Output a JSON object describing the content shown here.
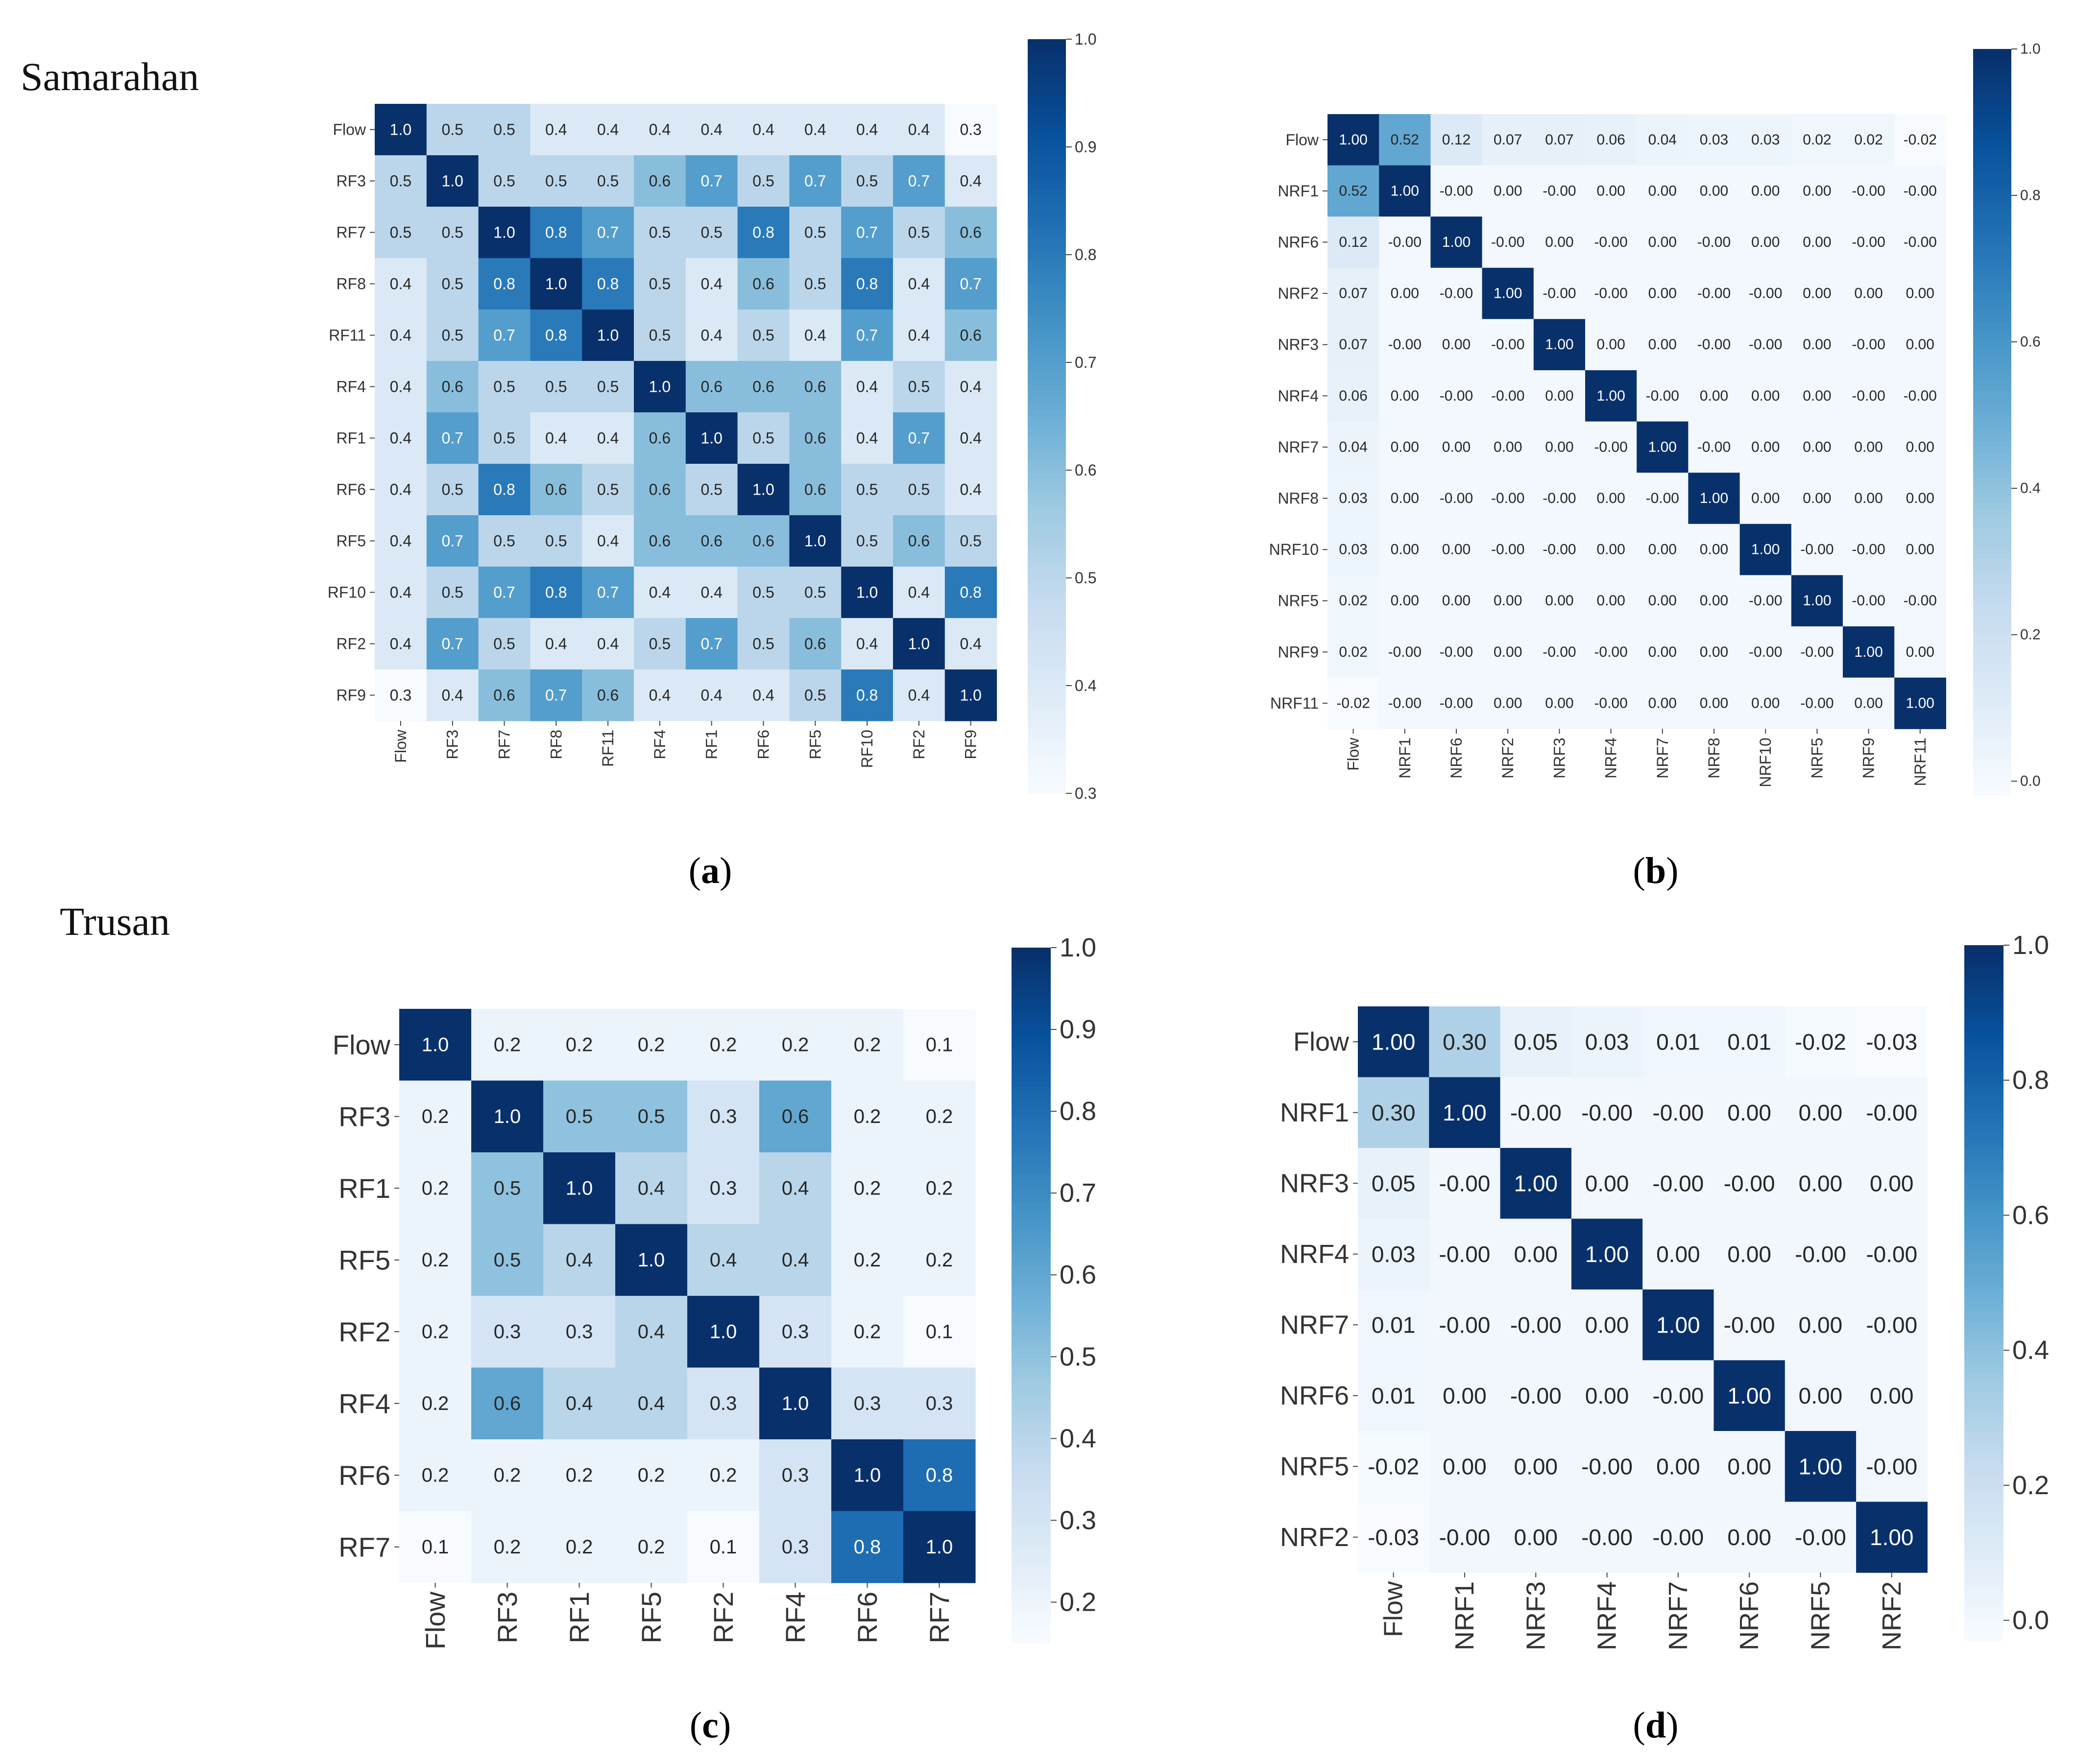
{
  "sections": [
    "Samarahan",
    "Trusan"
  ],
  "captions": [
    {
      "letter": "a"
    },
    {
      "letter": "b"
    },
    {
      "letter": "c"
    },
    {
      "letter": "d"
    }
  ],
  "colormap": {
    "name": "Blues",
    "stops": [
      "#f7fbff",
      "#deebf7",
      "#c6dbef",
      "#9ecae1",
      "#6baed6",
      "#4292c6",
      "#2171b5",
      "#08519c",
      "#08306b"
    ]
  },
  "chart_data": [
    {
      "id": "a",
      "type": "heatmap",
      "title": "",
      "section": "Samarahan",
      "labels": [
        "Flow",
        "RF3",
        "RF7",
        "RF8",
        "RF11",
        "RF4",
        "RF1",
        "RF6",
        "RF5",
        "RF10",
        "RF2",
        "RF9"
      ],
      "decimals": 1,
      "vmin": 0.3,
      "vmax": 1.0,
      "colorbar_ticks": [
        1.0,
        0.9,
        0.8,
        0.7,
        0.6,
        0.5,
        0.4,
        0.3
      ],
      "values": [
        [
          1.0,
          0.5,
          0.5,
          0.4,
          0.4,
          0.4,
          0.4,
          0.4,
          0.4,
          0.4,
          0.4,
          0.3
        ],
        [
          0.5,
          1.0,
          0.5,
          0.5,
          0.5,
          0.6,
          0.7,
          0.5,
          0.7,
          0.5,
          0.7,
          0.4
        ],
        [
          0.5,
          0.5,
          1.0,
          0.8,
          0.7,
          0.5,
          0.5,
          0.8,
          0.5,
          0.7,
          0.5,
          0.6
        ],
        [
          0.4,
          0.5,
          0.8,
          1.0,
          0.8,
          0.5,
          0.4,
          0.6,
          0.5,
          0.8,
          0.4,
          0.7
        ],
        [
          0.4,
          0.5,
          0.7,
          0.8,
          1.0,
          0.5,
          0.4,
          0.5,
          0.4,
          0.7,
          0.4,
          0.6
        ],
        [
          0.4,
          0.6,
          0.5,
          0.5,
          0.5,
          1.0,
          0.6,
          0.6,
          0.6,
          0.4,
          0.5,
          0.4
        ],
        [
          0.4,
          0.7,
          0.5,
          0.4,
          0.4,
          0.6,
          1.0,
          0.5,
          0.6,
          0.4,
          0.7,
          0.4
        ],
        [
          0.4,
          0.5,
          0.8,
          0.6,
          0.5,
          0.6,
          0.5,
          1.0,
          0.6,
          0.5,
          0.5,
          0.4
        ],
        [
          0.4,
          0.7,
          0.5,
          0.5,
          0.4,
          0.6,
          0.6,
          0.6,
          1.0,
          0.5,
          0.6,
          0.5
        ],
        [
          0.4,
          0.5,
          0.7,
          0.8,
          0.7,
          0.4,
          0.4,
          0.5,
          0.5,
          1.0,
          0.4,
          0.8
        ],
        [
          0.4,
          0.7,
          0.5,
          0.4,
          0.4,
          0.5,
          0.7,
          0.5,
          0.6,
          0.4,
          1.0,
          0.4
        ],
        [
          0.3,
          0.4,
          0.6,
          0.7,
          0.6,
          0.4,
          0.4,
          0.4,
          0.5,
          0.8,
          0.4,
          1.0
        ]
      ]
    },
    {
      "id": "b",
      "type": "heatmap",
      "title": "",
      "section": "Samarahan",
      "labels": [
        "Flow",
        "NRF1",
        "NRF6",
        "NRF2",
        "NRF3",
        "NRF4",
        "NRF7",
        "NRF8",
        "NRF10",
        "NRF5",
        "NRF9",
        "NRF11"
      ],
      "decimals": 2,
      "vmin": -0.02,
      "vmax": 1.0,
      "colorbar_ticks": [
        1.0,
        0.8,
        0.6,
        0.4,
        0.2,
        0.0
      ],
      "values": [
        [
          1.0,
          0.52,
          0.12,
          0.07,
          0.07,
          0.06,
          0.04,
          0.03,
          0.03,
          0.02,
          0.02,
          -0.02
        ],
        [
          0.52,
          1.0,
          -0.0,
          0.0,
          -0.0,
          0.0,
          0.0,
          0.0,
          0.0,
          0.0,
          -0.0,
          -0.0
        ],
        [
          0.12,
          -0.0,
          1.0,
          -0.0,
          0.0,
          -0.0,
          0.0,
          -0.0,
          0.0,
          0.0,
          -0.0,
          -0.0
        ],
        [
          0.07,
          0.0,
          -0.0,
          1.0,
          -0.0,
          -0.0,
          0.0,
          -0.0,
          -0.0,
          0.0,
          0.0,
          0.0
        ],
        [
          0.07,
          -0.0,
          0.0,
          -0.0,
          1.0,
          0.0,
          0.0,
          -0.0,
          -0.0,
          0.0,
          -0.0,
          0.0
        ],
        [
          0.06,
          0.0,
          -0.0,
          -0.0,
          0.0,
          1.0,
          -0.0,
          0.0,
          0.0,
          0.0,
          -0.0,
          -0.0
        ],
        [
          0.04,
          0.0,
          0.0,
          0.0,
          0.0,
          -0.0,
          1.0,
          -0.0,
          0.0,
          0.0,
          0.0,
          0.0
        ],
        [
          0.03,
          0.0,
          -0.0,
          -0.0,
          -0.0,
          0.0,
          -0.0,
          1.0,
          0.0,
          0.0,
          0.0,
          0.0
        ],
        [
          0.03,
          0.0,
          0.0,
          -0.0,
          -0.0,
          0.0,
          0.0,
          0.0,
          1.0,
          -0.0,
          -0.0,
          0.0
        ],
        [
          0.02,
          0.0,
          0.0,
          0.0,
          0.0,
          0.0,
          0.0,
          0.0,
          -0.0,
          1.0,
          -0.0,
          -0.0
        ],
        [
          0.02,
          -0.0,
          -0.0,
          0.0,
          -0.0,
          -0.0,
          0.0,
          0.0,
          -0.0,
          -0.0,
          1.0,
          0.0
        ],
        [
          -0.02,
          -0.0,
          -0.0,
          0.0,
          0.0,
          -0.0,
          0.0,
          0.0,
          0.0,
          -0.0,
          0.0,
          1.0
        ]
      ]
    },
    {
      "id": "c",
      "type": "heatmap",
      "title": "",
      "section": "Trusan",
      "labels": [
        "Flow",
        "RF3",
        "RF1",
        "RF5",
        "RF2",
        "RF4",
        "RF6",
        "RF7"
      ],
      "decimals": 1,
      "vmin": 0.15,
      "vmax": 1.0,
      "colorbar_ticks": [
        1.0,
        0.9,
        0.8,
        0.7,
        0.6,
        0.5,
        0.4,
        0.3,
        0.2
      ],
      "values": [
        [
          1.0,
          0.2,
          0.2,
          0.2,
          0.2,
          0.2,
          0.2,
          0.1
        ],
        [
          0.2,
          1.0,
          0.5,
          0.5,
          0.3,
          0.6,
          0.2,
          0.2
        ],
        [
          0.2,
          0.5,
          1.0,
          0.4,
          0.3,
          0.4,
          0.2,
          0.2
        ],
        [
          0.2,
          0.5,
          0.4,
          1.0,
          0.4,
          0.4,
          0.2,
          0.2
        ],
        [
          0.2,
          0.3,
          0.3,
          0.4,
          1.0,
          0.3,
          0.2,
          0.1
        ],
        [
          0.2,
          0.6,
          0.4,
          0.4,
          0.3,
          1.0,
          0.3,
          0.3
        ],
        [
          0.2,
          0.2,
          0.2,
          0.2,
          0.2,
          0.3,
          1.0,
          0.8
        ],
        [
          0.1,
          0.2,
          0.2,
          0.2,
          0.1,
          0.3,
          0.8,
          1.0
        ]
      ]
    },
    {
      "id": "d",
      "type": "heatmap",
      "title": "",
      "section": "Trusan",
      "labels": [
        "Flow",
        "NRF1",
        "NRF3",
        "NRF4",
        "NRF7",
        "NRF6",
        "NRF5",
        "NRF2"
      ],
      "decimals": 2,
      "vmin": -0.03,
      "vmax": 1.0,
      "colorbar_ticks": [
        1.0,
        0.8,
        0.6,
        0.4,
        0.2,
        0.0
      ],
      "values": [
        [
          1.0,
          0.3,
          0.05,
          0.03,
          0.01,
          0.01,
          -0.02,
          -0.03
        ],
        [
          0.3,
          1.0,
          -0.0,
          -0.0,
          -0.0,
          0.0,
          0.0,
          -0.0
        ],
        [
          0.05,
          -0.0,
          1.0,
          0.0,
          -0.0,
          -0.0,
          0.0,
          0.0
        ],
        [
          0.03,
          -0.0,
          0.0,
          1.0,
          0.0,
          0.0,
          -0.0,
          -0.0
        ],
        [
          0.01,
          -0.0,
          -0.0,
          0.0,
          1.0,
          -0.0,
          0.0,
          -0.0
        ],
        [
          0.01,
          0.0,
          -0.0,
          0.0,
          -0.0,
          1.0,
          0.0,
          0.0
        ],
        [
          -0.02,
          0.0,
          0.0,
          -0.0,
          0.0,
          0.0,
          1.0,
          -0.0
        ],
        [
          -0.03,
          -0.0,
          0.0,
          -0.0,
          -0.0,
          0.0,
          -0.0,
          1.0
        ]
      ]
    }
  ]
}
